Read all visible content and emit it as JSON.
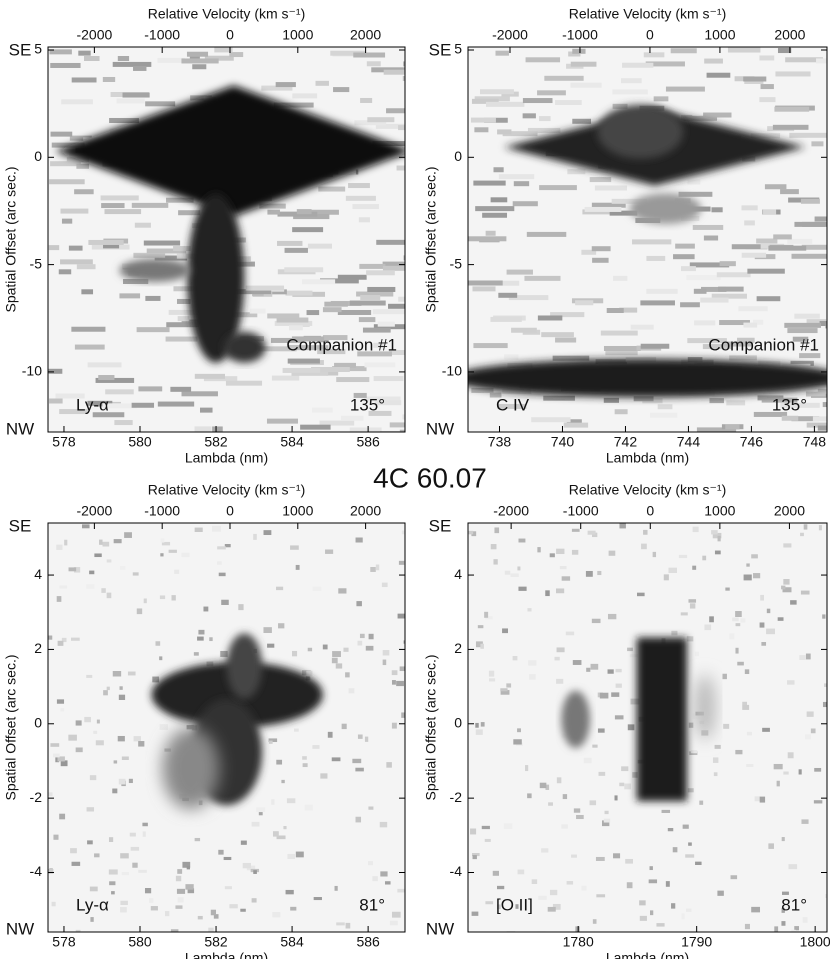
{
  "title": "4C 60.07",
  "chart_data": [
    {
      "type": "spectrum2d",
      "xlabel": "Lambda (nm)",
      "x2label": "Relative Velocity (km s⁻¹)",
      "ylabel": "Spatial Offset (arc sec.)",
      "xlim": [
        577.58,
        586.97
      ],
      "xticks": [
        578,
        580,
        582,
        584,
        586
      ],
      "x2lim": [
        -2684,
        2581
      ],
      "x2ticks": [
        -2000,
        -1000,
        0,
        1000,
        2000
      ],
      "ylim": [
        -12.8,
        5.14
      ],
      "yticks": [
        5,
        0,
        -5,
        -10
      ],
      "top_label": "SE",
      "bottom_label": "NW",
      "line_label": "Ly-α",
      "angle_label": "135°",
      "companion_label": "Companion #1"
    },
    {
      "type": "spectrum2d",
      "xlabel": "Lambda (nm)",
      "x2label": "Relative Velocity (km s⁻¹)",
      "ylabel": "Spatial Offset (arc sec.)",
      "xlim": [
        737.0,
        748.4
      ],
      "xticks": [
        738,
        740,
        742,
        744,
        746,
        748
      ],
      "x2lim": [
        -2600,
        2530
      ],
      "x2ticks": [
        -2000,
        -1000,
        0,
        1000,
        2000
      ],
      "ylim": [
        -12.8,
        5.14
      ],
      "yticks": [
        5,
        0,
        -5,
        -10
      ],
      "top_label": "SE",
      "bottom_label": "NW",
      "line_label": "C IV",
      "angle_label": "135°",
      "companion_label": "Companion #1"
    },
    {
      "type": "spectrum2d",
      "xlabel": "Lambda (nm)",
      "x2label": "Relative Velocity (km s⁻¹)",
      "ylabel": "Spatial Offset (arc sec.)",
      "xlim": [
        577.58,
        586.97
      ],
      "xticks": [
        578,
        580,
        582,
        584,
        586
      ],
      "x2lim": [
        -2684,
        2581
      ],
      "x2ticks": [
        -2000,
        -1000,
        0,
        1000,
        2000
      ],
      "ylim": [
        -5.6,
        5.4
      ],
      "yticks": [
        4,
        2,
        0,
        -2,
        -4
      ],
      "top_label": "SE",
      "bottom_label": "NW",
      "line_label": "Ly-α",
      "angle_label": "81°"
    },
    {
      "type": "spectrum2d",
      "xlabel": "Lambda (nm)",
      "x2label": "Relative Velocity (km s⁻¹)",
      "ylabel": "Spatial Offset (arc sec.)",
      "xlim": [
        1770.7,
        1801.0
      ],
      "xticks": [
        1780,
        1790,
        1800
      ],
      "x2lim": [
        -2620,
        2540
      ],
      "x2ticks": [
        -2000,
        -1000,
        0,
        1000,
        2000
      ],
      "ylim": [
        -5.6,
        5.4
      ],
      "yticks": [
        4,
        2,
        0,
        -2,
        -4
      ],
      "top_label": "SE",
      "bottom_label": "NW",
      "line_label": "[O II]",
      "angle_label": "81°"
    }
  ]
}
